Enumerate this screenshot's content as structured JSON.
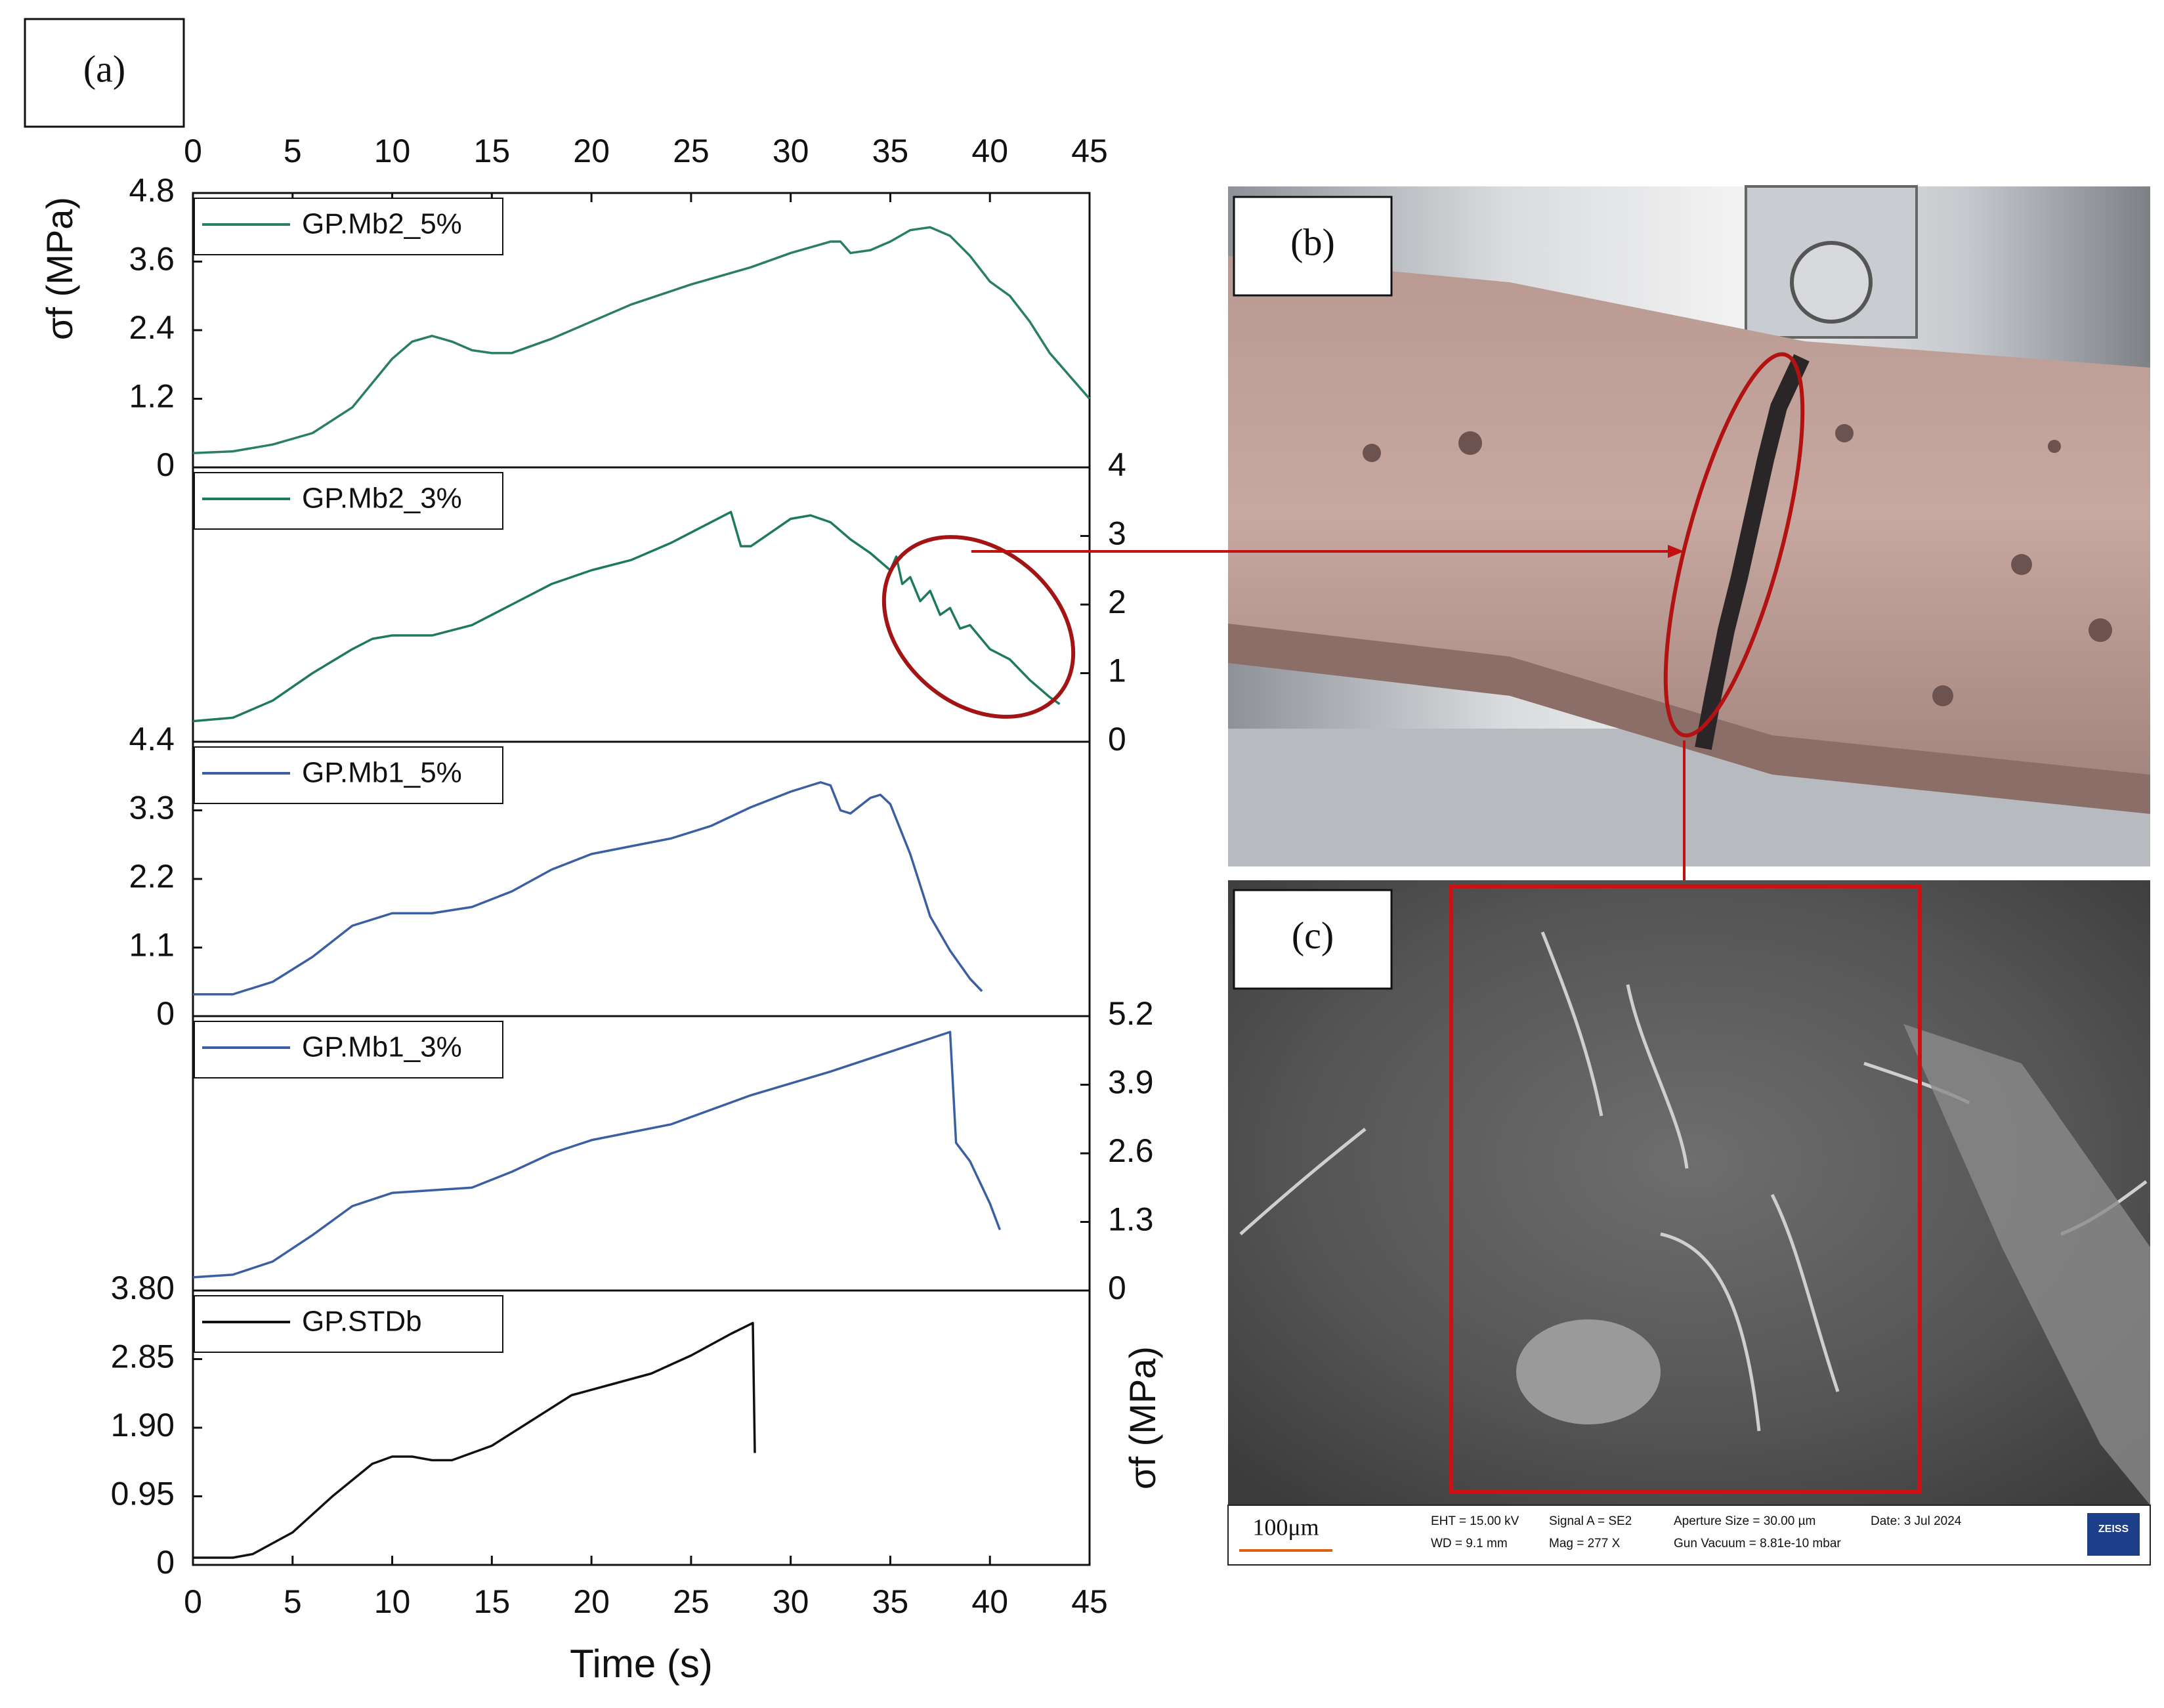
{
  "panel_labels": [
    "(a)",
    "(b)",
    "(c)"
  ],
  "sem_info": {
    "scale_bar": "100μm",
    "eht": "EHT = 15.00 kV",
    "wd": "WD =  9.1 mm",
    "signal": "Signal A = SE2",
    "mag": "Mag =   277 X",
    "aperture": "Aperture Size = 30.00 µm",
    "vacuum": "Gun Vacuum = 8.81e-10 mbar",
    "date": "Date: 3 Jul 2024",
    "brand": "ZEISS"
  },
  "chart_data": [
    {
      "type": "line",
      "ylabel": "σf (MPa)",
      "ylabel_side": "left",
      "yaxis_side": "left",
      "xaxis_side": "top",
      "xlim": [
        0,
        45
      ],
      "xticks": [
        0,
        5,
        10,
        15,
        20,
        25,
        30,
        35,
        40,
        45
      ],
      "ylim": [
        0,
        4.8
      ],
      "yticks": [
        0,
        1.2,
        2.4,
        3.6,
        4.8
      ],
      "series": [
        {
          "name": "GP.Mb2_5%",
          "color": "#2a7f5f",
          "x": [
            0,
            2,
            4,
            6,
            8,
            10,
            11,
            12,
            13,
            14,
            15,
            16,
            18,
            20,
            22,
            25,
            28,
            30,
            32,
            32.5,
            33,
            34,
            35,
            36,
            37,
            38,
            39,
            40,
            41,
            42,
            43,
            44,
            45
          ],
          "values": [
            0.25,
            0.28,
            0.4,
            0.6,
            1.05,
            1.9,
            2.2,
            2.3,
            2.2,
            2.05,
            2.0,
            2.0,
            2.25,
            2.55,
            2.85,
            3.2,
            3.5,
            3.75,
            3.95,
            3.95,
            3.75,
            3.8,
            3.95,
            4.15,
            4.2,
            4.05,
            3.7,
            3.25,
            3.0,
            2.55,
            2.0,
            1.6,
            1.2
          ]
        }
      ]
    },
    {
      "type": "line",
      "yaxis_side": "right",
      "xlim": [
        0,
        45
      ],
      "ylim": [
        0,
        4
      ],
      "yticks": [
        0,
        1,
        2,
        3,
        4
      ],
      "series": [
        {
          "name": "GP.Mb2_3%",
          "color": "#1f7a5c",
          "x": [
            0,
            2,
            4,
            6,
            8,
            9,
            10,
            11,
            12,
            14,
            16,
            18,
            20,
            22,
            24,
            26,
            27,
            27.5,
            28,
            30,
            31,
            32,
            33,
            34,
            35,
            35.3,
            35.6,
            36,
            36.5,
            37,
            37.5,
            38,
            38.5,
            39,
            40,
            41,
            42,
            43,
            43.5
          ],
          "values": [
            0.3,
            0.35,
            0.6,
            1.0,
            1.35,
            1.5,
            1.55,
            1.55,
            1.55,
            1.7,
            2.0,
            2.3,
            2.5,
            2.65,
            2.9,
            3.2,
            3.35,
            2.85,
            2.85,
            3.25,
            3.3,
            3.2,
            2.95,
            2.75,
            2.5,
            2.7,
            2.3,
            2.4,
            2.05,
            2.2,
            1.85,
            1.95,
            1.65,
            1.7,
            1.35,
            1.2,
            0.9,
            0.65,
            0.55
          ]
        }
      ]
    },
    {
      "type": "line",
      "yaxis_side": "left",
      "xlim": [
        0,
        45
      ],
      "ylim": [
        0,
        4.4
      ],
      "yticks": [
        0,
        1.1,
        2.2,
        3.3,
        4.4
      ],
      "series": [
        {
          "name": "GP.Mb1_5%",
          "color": "#3b5fa3",
          "x": [
            0,
            2,
            4,
            6,
            8,
            10,
            12,
            14,
            16,
            18,
            20,
            24,
            26,
            28,
            30,
            31.5,
            32,
            32.5,
            33,
            34,
            34.5,
            35,
            36,
            37,
            38,
            39,
            39.6
          ],
          "values": [
            0.35,
            0.35,
            0.55,
            0.95,
            1.45,
            1.65,
            1.65,
            1.75,
            2.0,
            2.35,
            2.6,
            2.85,
            3.05,
            3.35,
            3.6,
            3.75,
            3.7,
            3.3,
            3.25,
            3.5,
            3.55,
            3.4,
            2.6,
            1.6,
            1.05,
            0.6,
            0.4
          ]
        }
      ]
    },
    {
      "type": "line",
      "yaxis_side": "right",
      "xlim": [
        0,
        45
      ],
      "ylim": [
        0,
        5.2
      ],
      "yticks": [
        0,
        1.3,
        2.6,
        3.9,
        5.2
      ],
      "series": [
        {
          "name": "GP.Mb1_3%",
          "color": "#3b5fa3",
          "x": [
            0,
            2,
            4,
            6,
            8,
            10,
            12,
            14,
            16,
            18,
            20,
            24,
            28,
            32,
            36,
            38,
            38.3,
            39,
            40,
            40.5
          ],
          "values": [
            0.25,
            0.3,
            0.55,
            1.05,
            1.6,
            1.85,
            1.9,
            1.95,
            2.25,
            2.6,
            2.85,
            3.15,
            3.7,
            4.15,
            4.65,
            4.9,
            2.8,
            2.45,
            1.65,
            1.15
          ]
        }
      ]
    },
    {
      "type": "line",
      "ylabel": "σf (MPa)",
      "ylabel_side": "right",
      "yaxis_side": "left",
      "xaxis_side": "bottom",
      "xlabel": "Time (s)",
      "xlim": [
        0,
        45
      ],
      "xticks": [
        0,
        5,
        10,
        15,
        20,
        25,
        30,
        35,
        40,
        45
      ],
      "ylim": [
        0,
        3.8
      ],
      "yticks": [
        0,
        0.95,
        {
          "value": 1.9,
          "label": "1.90"
        },
        2.85,
        {
          "value": 3.8,
          "label": "3.80"
        }
      ],
      "series": [
        {
          "name": "GP.STDb",
          "color": "#111111",
          "x": [
            0,
            2,
            3,
            5,
            7,
            9,
            10,
            11,
            12,
            13,
            15,
            17,
            19,
            21,
            23,
            25,
            27,
            28.1,
            28.2
          ],
          "values": [
            0.1,
            0.1,
            0.15,
            0.45,
            0.95,
            1.4,
            1.5,
            1.5,
            1.45,
            1.45,
            1.65,
            2.0,
            2.35,
            2.5,
            2.65,
            2.9,
            3.2,
            3.35,
            1.55
          ]
        }
      ]
    }
  ]
}
